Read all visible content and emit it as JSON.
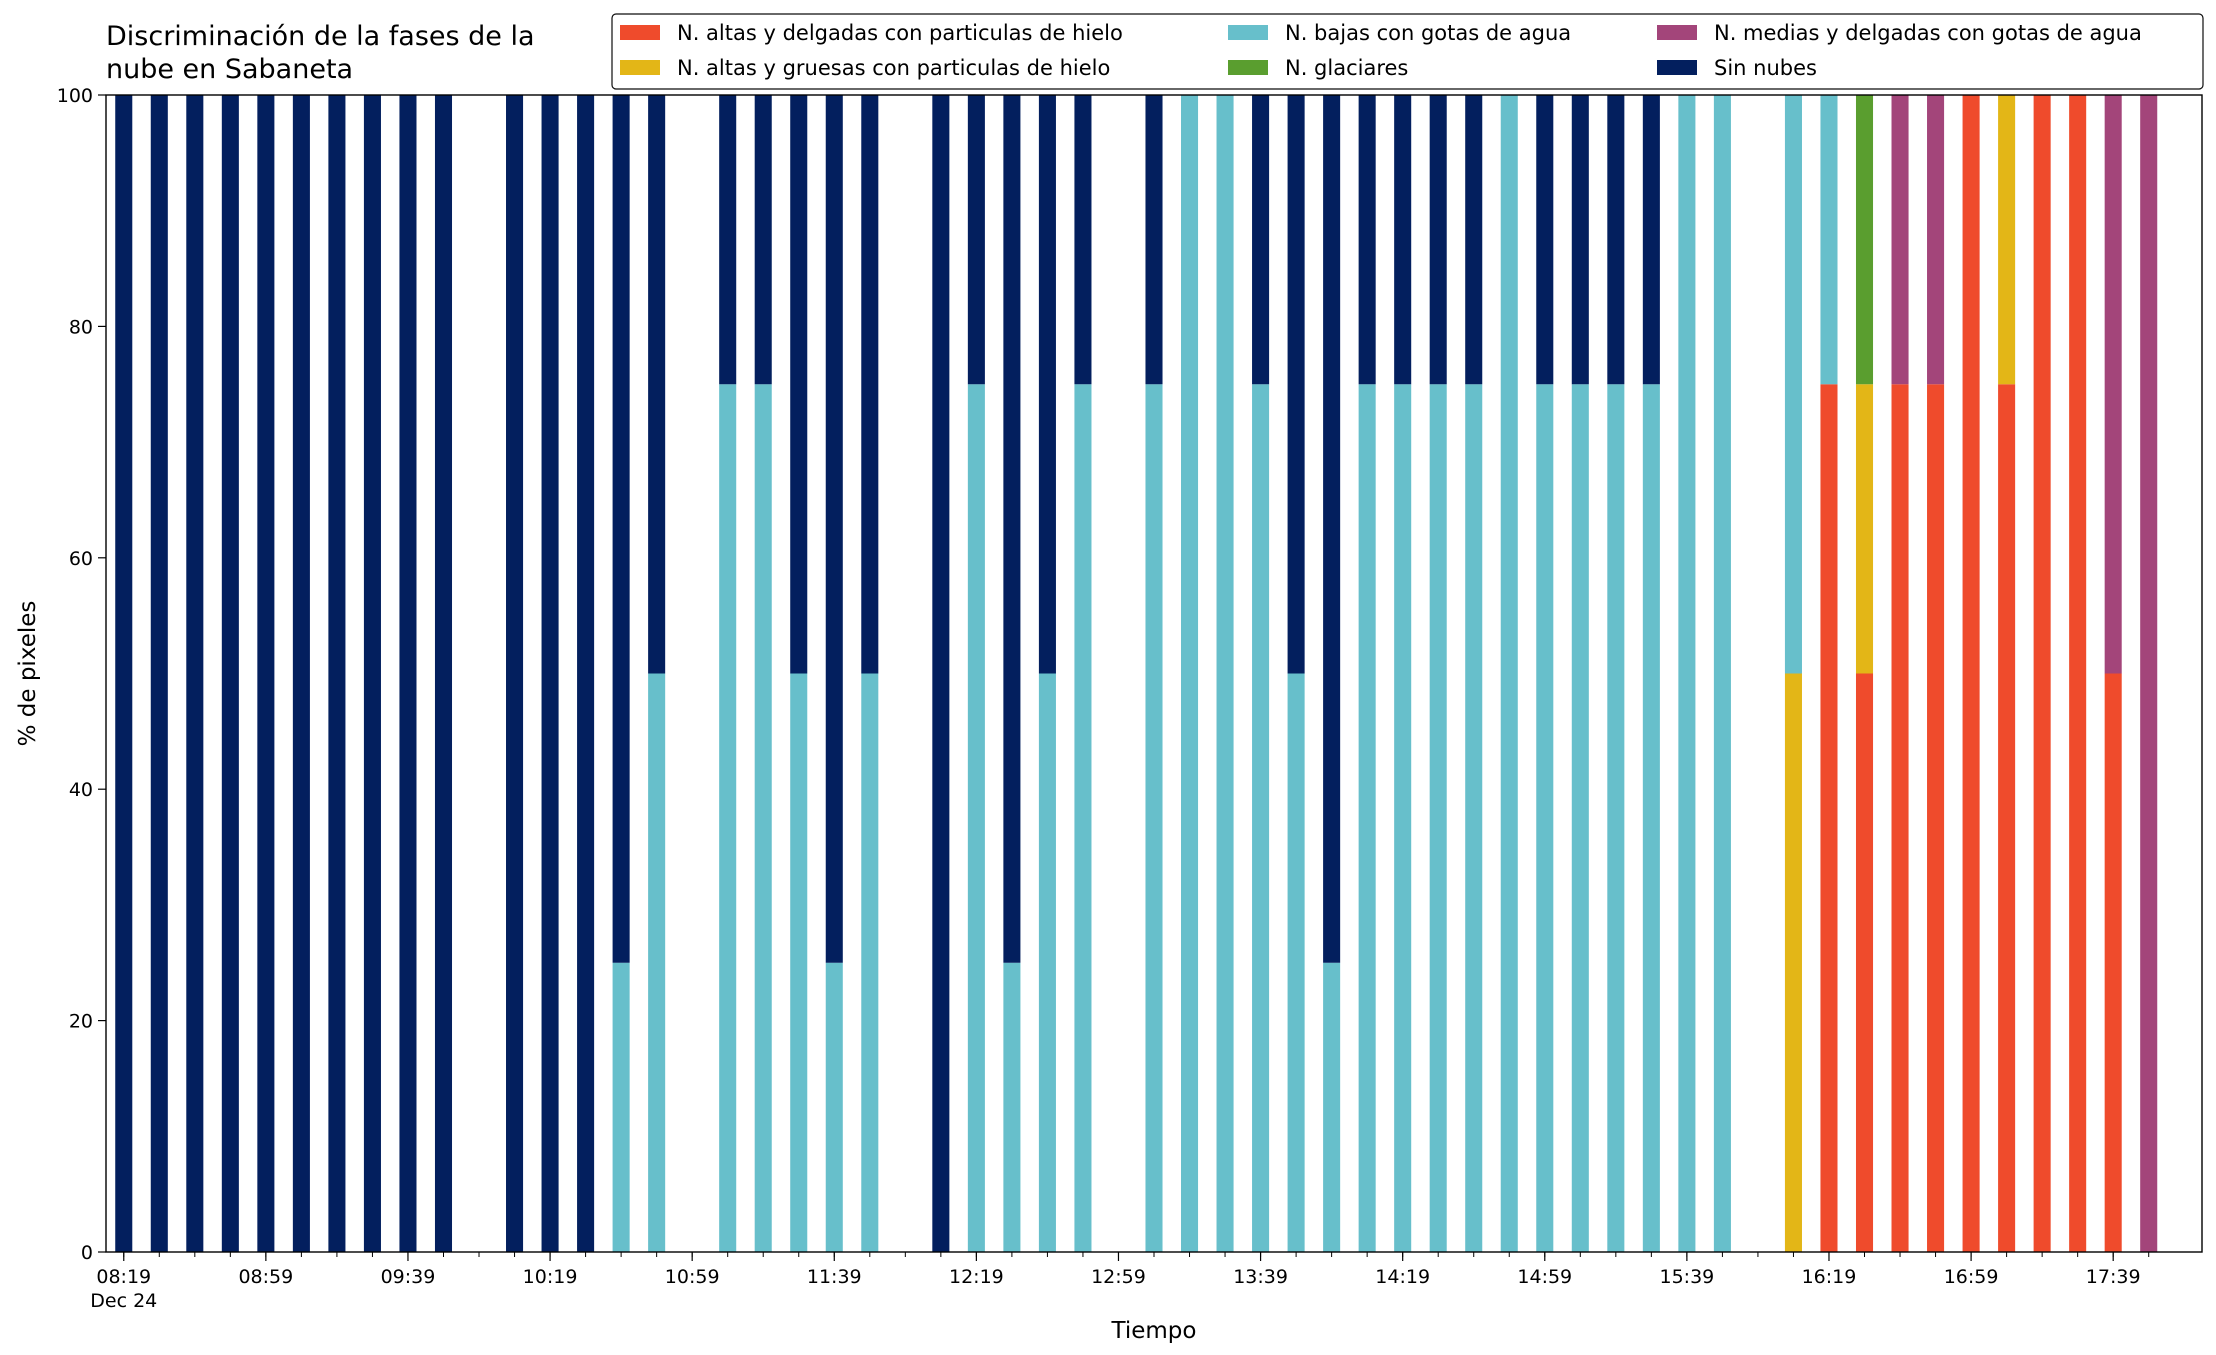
{
  "chart_data": {
    "type": "stacked_bar",
    "title": "Discriminación de la fases de la\nnube en Sabaneta",
    "xlabel": "Tiempo",
    "ylabel": "% de pixeles",
    "x": [
      "08:19",
      "08:29",
      "08:39",
      "08:49",
      "08:59",
      "09:09",
      "09:19",
      "09:29",
      "09:39",
      "09:49",
      "09:59",
      "10:09",
      "10:19",
      "10:29",
      "10:39",
      "10:49",
      "10:59",
      "11:09",
      "11:19",
      "11:29",
      "11:39",
      "11:49",
      "11:59",
      "12:09",
      "12:19",
      "12:29",
      "12:39",
      "12:49",
      "12:59",
      "13:09",
      "13:19",
      "13:29",
      "13:39",
      "13:49",
      "13:59",
      "14:09",
      "14:19",
      "14:29",
      "14:39",
      "14:49",
      "14:59",
      "15:09",
      "15:19",
      "15:29",
      "15:39",
      "15:49",
      "15:59",
      "16:09",
      "16:19",
      "16:29",
      "16:39",
      "16:49",
      "16:59",
      "17:09",
      "17:19",
      "17:29",
      "17:39",
      "17:49"
    ],
    "xlim": [
      "08:14",
      "18:04"
    ],
    "xticks": [
      "08:19",
      "08:59",
      "09:39",
      "10:19",
      "10:59",
      "11:39",
      "12:19",
      "12:59",
      "13:39",
      "14:19",
      "14:59",
      "15:39",
      "16:19",
      "16:59",
      "17:39"
    ],
    "date_label": "Dec 24",
    "ylim": [
      0,
      100
    ],
    "yticks": [
      0,
      20,
      40,
      60,
      80,
      100
    ],
    "legend": "top-right",
    "series": [
      {
        "name": "N. altas y delgadas con particulas de hielo",
        "color": "#ef4b2c",
        "values": [
          0,
          0,
          0,
          0,
          0,
          0,
          0,
          0,
          0,
          0,
          null,
          0,
          0,
          0,
          0,
          0,
          null,
          0,
          0,
          0,
          0,
          0,
          null,
          0,
          0,
          0,
          0,
          0,
          null,
          0,
          0,
          0,
          0,
          0,
          0,
          0,
          0,
          0,
          0,
          0,
          0,
          0,
          0,
          0,
          0,
          0,
          null,
          0,
          75,
          50,
          75,
          75,
          100,
          75,
          100,
          100,
          50,
          0
        ]
      },
      {
        "name": "N. altas y gruesas con particulas de hielo",
        "color": "#e3b617",
        "values": [
          0,
          0,
          0,
          0,
          0,
          0,
          0,
          0,
          0,
          0,
          null,
          0,
          0,
          0,
          0,
          0,
          null,
          0,
          0,
          0,
          0,
          0,
          null,
          0,
          0,
          0,
          0,
          0,
          null,
          0,
          0,
          0,
          0,
          0,
          0,
          0,
          0,
          0,
          0,
          0,
          0,
          0,
          0,
          0,
          0,
          0,
          null,
          50,
          0,
          25,
          0,
          0,
          0,
          25,
          0,
          0,
          0,
          0
        ]
      },
      {
        "name": "N. bajas con gotas de agua",
        "color": "#67bfcb",
        "values": [
          0,
          0,
          0,
          0,
          0,
          0,
          0,
          0,
          0,
          0,
          null,
          0,
          0,
          0,
          25,
          50,
          null,
          75,
          75,
          50,
          25,
          50,
          null,
          0,
          75,
          25,
          50,
          75,
          null,
          75,
          100,
          100,
          75,
          50,
          25,
          75,
          75,
          75,
          75,
          100,
          75,
          75,
          75,
          75,
          100,
          100,
          null,
          50,
          25,
          0,
          0,
          0,
          0,
          0,
          0,
          0,
          0,
          0
        ]
      },
      {
        "name": "N. glaciares",
        "color": "#5a9e2f",
        "values": [
          0,
          0,
          0,
          0,
          0,
          0,
          0,
          0,
          0,
          0,
          null,
          0,
          0,
          0,
          0,
          0,
          null,
          0,
          0,
          0,
          0,
          0,
          null,
          0,
          0,
          0,
          0,
          0,
          null,
          0,
          0,
          0,
          0,
          0,
          0,
          0,
          0,
          0,
          0,
          0,
          0,
          0,
          0,
          0,
          0,
          0,
          null,
          0,
          0,
          25,
          0,
          0,
          0,
          0,
          0,
          0,
          0,
          0
        ]
      },
      {
        "name": "N. medias y delgadas con gotas de agua",
        "color": "#a3457a",
        "values": [
          0,
          0,
          0,
          0,
          0,
          0,
          0,
          0,
          0,
          0,
          null,
          0,
          0,
          0,
          0,
          0,
          null,
          0,
          0,
          0,
          0,
          0,
          null,
          0,
          0,
          0,
          0,
          0,
          null,
          0,
          0,
          0,
          0,
          0,
          0,
          0,
          0,
          0,
          0,
          0,
          0,
          0,
          0,
          0,
          0,
          0,
          null,
          0,
          0,
          0,
          25,
          25,
          0,
          0,
          0,
          0,
          50,
          100
        ]
      },
      {
        "name": "Sin nubes",
        "color": "#031f5e",
        "values": [
          100,
          100,
          100,
          100,
          100,
          100,
          100,
          100,
          100,
          100,
          null,
          100,
          100,
          100,
          75,
          50,
          null,
          25,
          25,
          50,
          75,
          50,
          null,
          100,
          25,
          75,
          50,
          25,
          null,
          25,
          0,
          0,
          25,
          50,
          75,
          25,
          25,
          25,
          25,
          0,
          25,
          25,
          25,
          25,
          0,
          0,
          null,
          0,
          0,
          0,
          0,
          0,
          0,
          0,
          0,
          0,
          0,
          0
        ]
      }
    ]
  }
}
